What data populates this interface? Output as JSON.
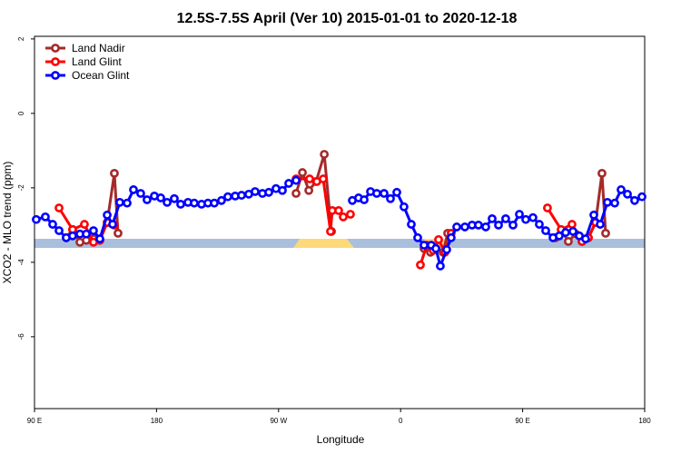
{
  "chart_data": {
    "type": "line",
    "title": "12.5S-7.5S April (Ver 10)   2015-01-01 to 2020-12-18",
    "x_label": "Longitude",
    "y_label": "XCO2 - MLO trend (ppm)",
    "xlim": [
      90,
      540
    ],
    "xticks": [
      {
        "value": 90,
        "label": "90 E"
      },
      {
        "value": 180,
        "label": "180"
      },
      {
        "value": 270,
        "label": "90 W"
      },
      {
        "value": 360,
        "label": "0"
      },
      {
        "value": 450,
        "label": "90 E"
      },
      {
        "value": 540,
        "label": "180"
      }
    ],
    "ylim": [
      -7.93,
      2.07
    ],
    "yticks": [
      -6,
      -4,
      -2,
      0,
      2
    ],
    "legend": "top-left",
    "series": [
      {
        "name": "Land Nadir",
        "color": "#a52a2a",
        "x": [
          113.4,
          118.1,
          123.5,
          128.2,
          133.5,
          138.2,
          143.6,
          148.9,
          151.6,
          200,
          282.9,
          287.6,
          292.3,
          297.7,
          303.7,
          309.0,
          340,
          377.3,
          382.0,
          386.0,
          391.3,
          394.7,
          450,
          474.3,
          479.0,
          483.7,
          489.1,
          493.8,
          498.5,
          503.8,
          508.5,
          511.2
        ],
        "values": [
          -3.34,
          -3.12,
          -3.46,
          -3.41,
          -3.37,
          -3.41,
          -2.93,
          -1.61,
          -3.22,
          null,
          -2.15,
          -1.59,
          -2.07,
          -1.83,
          -1.1,
          -3.17,
          null,
          -3.63,
          -3.73,
          -3.63,
          -3.73,
          -3.22,
          null,
          -3.34,
          -3.17,
          -3.44,
          -3.24,
          -3.44,
          -3.34,
          -2.93,
          -1.61,
          -3.22
        ]
      },
      {
        "name": "Land Glint",
        "color": "#ff0000",
        "x": [
          108.1,
          118.1,
          126.8,
          133.5,
          138.2,
          143.6,
          148.9,
          200,
          282.9,
          292.9,
          298.2,
          302.9,
          308.3,
          309.6,
          314.3,
          317.7,
          323.0,
          340,
          374.6,
          379.3,
          384.0,
          388.0,
          392.7,
          397.3,
          450,
          468.3,
          478.4,
          486.4,
          493.8,
          498.5,
          503.8
        ],
        "values": [
          -2.54,
          -3.12,
          -2.98,
          -3.46,
          -3.41,
          -2.93,
          -3.0,
          null,
          -1.76,
          -1.76,
          -1.83,
          -1.76,
          -3.17,
          -2.61,
          -2.61,
          -2.78,
          -2.71,
          null,
          -4.07,
          -3.54,
          -3.68,
          -3.39,
          -3.73,
          -3.22,
          null,
          -2.54,
          -3.12,
          -2.98,
          -3.44,
          -3.34,
          -2.93
        ]
      },
      {
        "name": "Ocean Glint",
        "color": "#0000ff",
        "x": [
          91.3,
          98.0,
          103.4,
          108.1,
          113.4,
          118.1,
          123.5,
          128.2,
          133.5,
          138.2,
          143.6,
          147.6,
          152.9,
          158.3,
          163.0,
          168.3,
          173.0,
          178.4,
          183.1,
          187.8,
          193.1,
          197.8,
          203.2,
          207.8,
          213.2,
          217.9,
          222.6,
          227.9,
          232.6,
          238.0,
          242.7,
          248.0,
          252.7,
          258.1,
          262.8,
          268.1,
          272.8,
          277.5,
          282.9,
          303.0,
          324.4,
          329.0,
          333.1,
          337.8,
          342.4,
          347.8,
          352.5,
          357.2,
          362.5,
          367.9,
          372.6,
          377.3,
          382.6,
          386.0,
          389.3,
          394.0,
          397.3,
          401.4,
          407.4,
          412.7,
          417.4,
          422.8,
          427.5,
          432.2,
          437.5,
          442.9,
          447.6,
          452.3,
          457.6,
          462.3,
          467.0,
          472.4,
          477.0,
          481.7,
          487.1,
          491.8,
          496.4,
          502.5,
          507.2,
          512.5,
          517.9,
          522.6,
          527.3,
          532.6,
          538.0
        ],
        "values": [
          -2.85,
          -2.78,
          -2.98,
          -3.15,
          -3.34,
          -3.29,
          -3.24,
          -3.24,
          -3.15,
          -3.37,
          -2.73,
          -2.98,
          -2.39,
          -2.41,
          -2.05,
          -2.15,
          -2.32,
          -2.22,
          -2.27,
          -2.39,
          -2.29,
          -2.44,
          -2.39,
          -2.41,
          -2.44,
          -2.41,
          -2.41,
          -2.34,
          -2.24,
          -2.22,
          -2.2,
          -2.17,
          -2.1,
          -2.15,
          -2.12,
          -2.02,
          -2.07,
          -1.88,
          -1.8,
          null,
          -2.34,
          -2.27,
          -2.32,
          -2.1,
          -2.15,
          -2.15,
          -2.29,
          -2.12,
          -2.51,
          -2.98,
          -3.34,
          -3.54,
          -3.54,
          -3.63,
          -4.1,
          -3.66,
          -3.34,
          -3.05,
          -3.05,
          -3.0,
          -3.0,
          -3.05,
          -2.83,
          -3.0,
          -2.83,
          -3.0,
          -2.71,
          -2.85,
          -2.8,
          -2.98,
          -3.15,
          -3.34,
          -3.29,
          -3.2,
          -3.17,
          -3.29,
          -3.37,
          -2.73,
          -2.98,
          -2.39,
          -2.41,
          -2.05,
          -2.17,
          -2.34,
          -2.24
        ]
      }
    ]
  }
}
